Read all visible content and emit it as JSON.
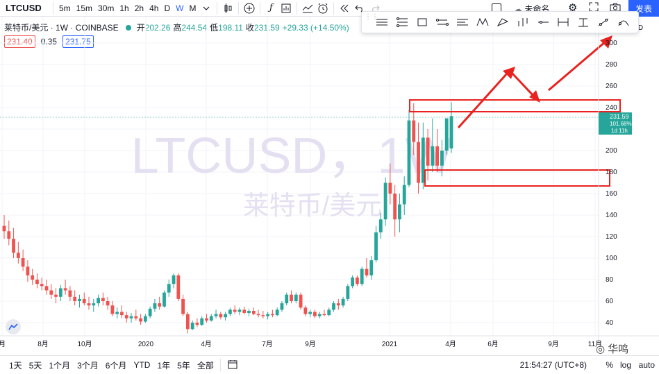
{
  "toolbar": {
    "symbol": "LTCUSD",
    "timeframes": [
      "5m",
      "15m",
      "30m",
      "1h",
      "2h",
      "4h",
      "D",
      "W",
      "M"
    ],
    "active_timeframe": "W",
    "layout_name": "未命名",
    "publish_label": "发表"
  },
  "legend": {
    "title": "莱特币/美元 · 1W · COINBASE",
    "open_label": "开",
    "open": "202.26",
    "high_label": "高",
    "high": "244.54",
    "low_label": "低",
    "low": "198.11",
    "close_label": "收",
    "close": "231.59",
    "change": "+29.33 (+14.50%)"
  },
  "quote": {
    "bid": "231.40",
    "spread": "0.35",
    "ask": "231.75"
  },
  "watermark": {
    "line1": "LTCUSD，1W",
    "line2": "莱特币/美元"
  },
  "price_axis": {
    "ticks": [
      "300",
      "280",
      "260",
      "240",
      "220",
      "200",
      "180",
      "160",
      "140",
      "120",
      "100",
      "80",
      "60",
      "40"
    ],
    "partial_top_label": "USD",
    "last_price": "231.59",
    "last_change": "101.68%",
    "countdown": "1d 11h"
  },
  "time_axis": {
    "labels": [
      "月",
      "8月",
      "10月",
      "2020",
      "4月",
      "7月",
      "9月",
      "2021",
      "4月",
      "6月",
      "9月",
      "11月"
    ]
  },
  "bottombar": {
    "ranges": [
      "1天",
      "5天",
      "1个月",
      "3个月",
      "6个月",
      "YTD",
      "1年",
      "5年",
      "全部"
    ],
    "clock": "21:54:27 (UTC+8)",
    "percent": "%",
    "log": "log",
    "auto": "auto"
  },
  "brand_watermark": "华鸣",
  "colors": {
    "up": "#26a69a",
    "down": "#ef5350",
    "accent": "#2962ff",
    "annotation": "#e8231f"
  },
  "chart_data": {
    "type": "candlestick",
    "title": "",
    "xlabel": "",
    "ylabel": "",
    "ylim": [
      30,
      310
    ],
    "grid": true,
    "candles": [
      [
        130,
        140,
        118,
        125
      ],
      [
        125,
        135,
        112,
        118
      ],
      [
        118,
        128,
        100,
        105
      ],
      [
        105,
        115,
        95,
        100
      ],
      [
        100,
        108,
        88,
        92
      ],
      [
        92,
        98,
        78,
        84
      ],
      [
        84,
        90,
        75,
        80
      ],
      [
        80,
        86,
        72,
        76
      ],
      [
        76,
        82,
        70,
        74
      ],
      [
        74,
        80,
        66,
        70
      ],
      [
        70,
        76,
        62,
        66
      ],
      [
        66,
        72,
        58,
        64
      ],
      [
        64,
        75,
        60,
        72
      ],
      [
        72,
        80,
        66,
        70
      ],
      [
        70,
        74,
        60,
        64
      ],
      [
        64,
        70,
        56,
        60
      ],
      [
        60,
        66,
        54,
        62
      ],
      [
        62,
        68,
        56,
        58
      ],
      [
        58,
        64,
        52,
        56
      ],
      [
        56,
        62,
        50,
        58
      ],
      [
        58,
        66,
        55,
        63
      ],
      [
        63,
        68,
        56,
        60
      ],
      [
        60,
        64,
        52,
        56
      ],
      [
        56,
        60,
        46,
        48
      ],
      [
        48,
        54,
        44,
        50
      ],
      [
        50,
        56,
        44,
        47
      ],
      [
        47,
        50,
        40,
        44
      ],
      [
        44,
        49,
        40,
        46
      ],
      [
        46,
        52,
        42,
        44
      ],
      [
        44,
        48,
        38,
        41
      ],
      [
        41,
        48,
        40,
        46
      ],
      [
        46,
        55,
        44,
        53
      ],
      [
        53,
        62,
        50,
        58
      ],
      [
        58,
        64,
        52,
        55
      ],
      [
        55,
        70,
        54,
        68
      ],
      [
        68,
        80,
        64,
        76
      ],
      [
        76,
        86,
        72,
        84
      ],
      [
        84,
        86,
        60,
        62
      ],
      [
        62,
        66,
        46,
        48
      ],
      [
        48,
        50,
        30,
        34
      ],
      [
        34,
        42,
        33,
        40
      ],
      [
        40,
        44,
        36,
        38
      ],
      [
        38,
        46,
        37,
        44
      ],
      [
        44,
        48,
        40,
        42
      ],
      [
        42,
        48,
        41,
        46
      ],
      [
        46,
        52,
        44,
        48
      ],
      [
        48,
        50,
        43,
        45
      ],
      [
        45,
        50,
        42,
        48
      ],
      [
        48,
        54,
        46,
        52
      ],
      [
        52,
        56,
        48,
        50
      ],
      [
        50,
        54,
        47,
        52
      ],
      [
        52,
        55,
        48,
        49
      ],
      [
        49,
        53,
        46,
        51
      ],
      [
        51,
        54,
        47,
        48
      ],
      [
        48,
        52,
        45,
        47
      ],
      [
        47,
        51,
        44,
        46
      ],
      [
        46,
        50,
        43,
        48
      ],
      [
        48,
        52,
        45,
        47
      ],
      [
        47,
        54,
        46,
        52
      ],
      [
        52,
        60,
        50,
        58
      ],
      [
        58,
        68,
        56,
        66
      ],
      [
        66,
        70,
        58,
        60
      ],
      [
        60,
        68,
        58,
        66
      ],
      [
        66,
        68,
        52,
        54
      ],
      [
        54,
        56,
        46,
        48
      ],
      [
        48,
        52,
        45,
        50
      ],
      [
        50,
        52,
        44,
        46
      ],
      [
        46,
        50,
        44,
        48
      ],
      [
        48,
        52,
        46,
        47
      ],
      [
        47,
        54,
        46,
        52
      ],
      [
        52,
        60,
        50,
        58
      ],
      [
        58,
        62,
        52,
        56
      ],
      [
        56,
        64,
        54,
        62
      ],
      [
        62,
        76,
        60,
        74
      ],
      [
        74,
        84,
        72,
        82
      ],
      [
        82,
        84,
        74,
        76
      ],
      [
        76,
        92,
        74,
        90
      ],
      [
        90,
        100,
        82,
        84
      ],
      [
        84,
        102,
        80,
        98
      ],
      [
        98,
        130,
        96,
        124
      ],
      [
        124,
        142,
        118,
        136
      ],
      [
        136,
        175,
        130,
        170
      ],
      [
        170,
        188,
        150,
        160
      ],
      [
        160,
        168,
        120,
        136
      ],
      [
        136,
        160,
        124,
        150
      ],
      [
        150,
        176,
        140,
        168
      ],
      [
        168,
        238,
        166,
        228
      ],
      [
        228,
        244,
        196,
        208
      ],
      [
        208,
        226,
        160,
        170
      ],
      [
        170,
        226,
        164,
        212
      ],
      [
        212,
        220,
        172,
        186
      ],
      [
        186,
        230,
        180,
        204
      ],
      [
        204,
        220,
        180,
        186
      ],
      [
        186,
        210,
        176,
        200
      ],
      [
        200,
        230,
        196,
        230
      ],
      [
        202,
        245,
        198,
        232
      ]
    ]
  }
}
